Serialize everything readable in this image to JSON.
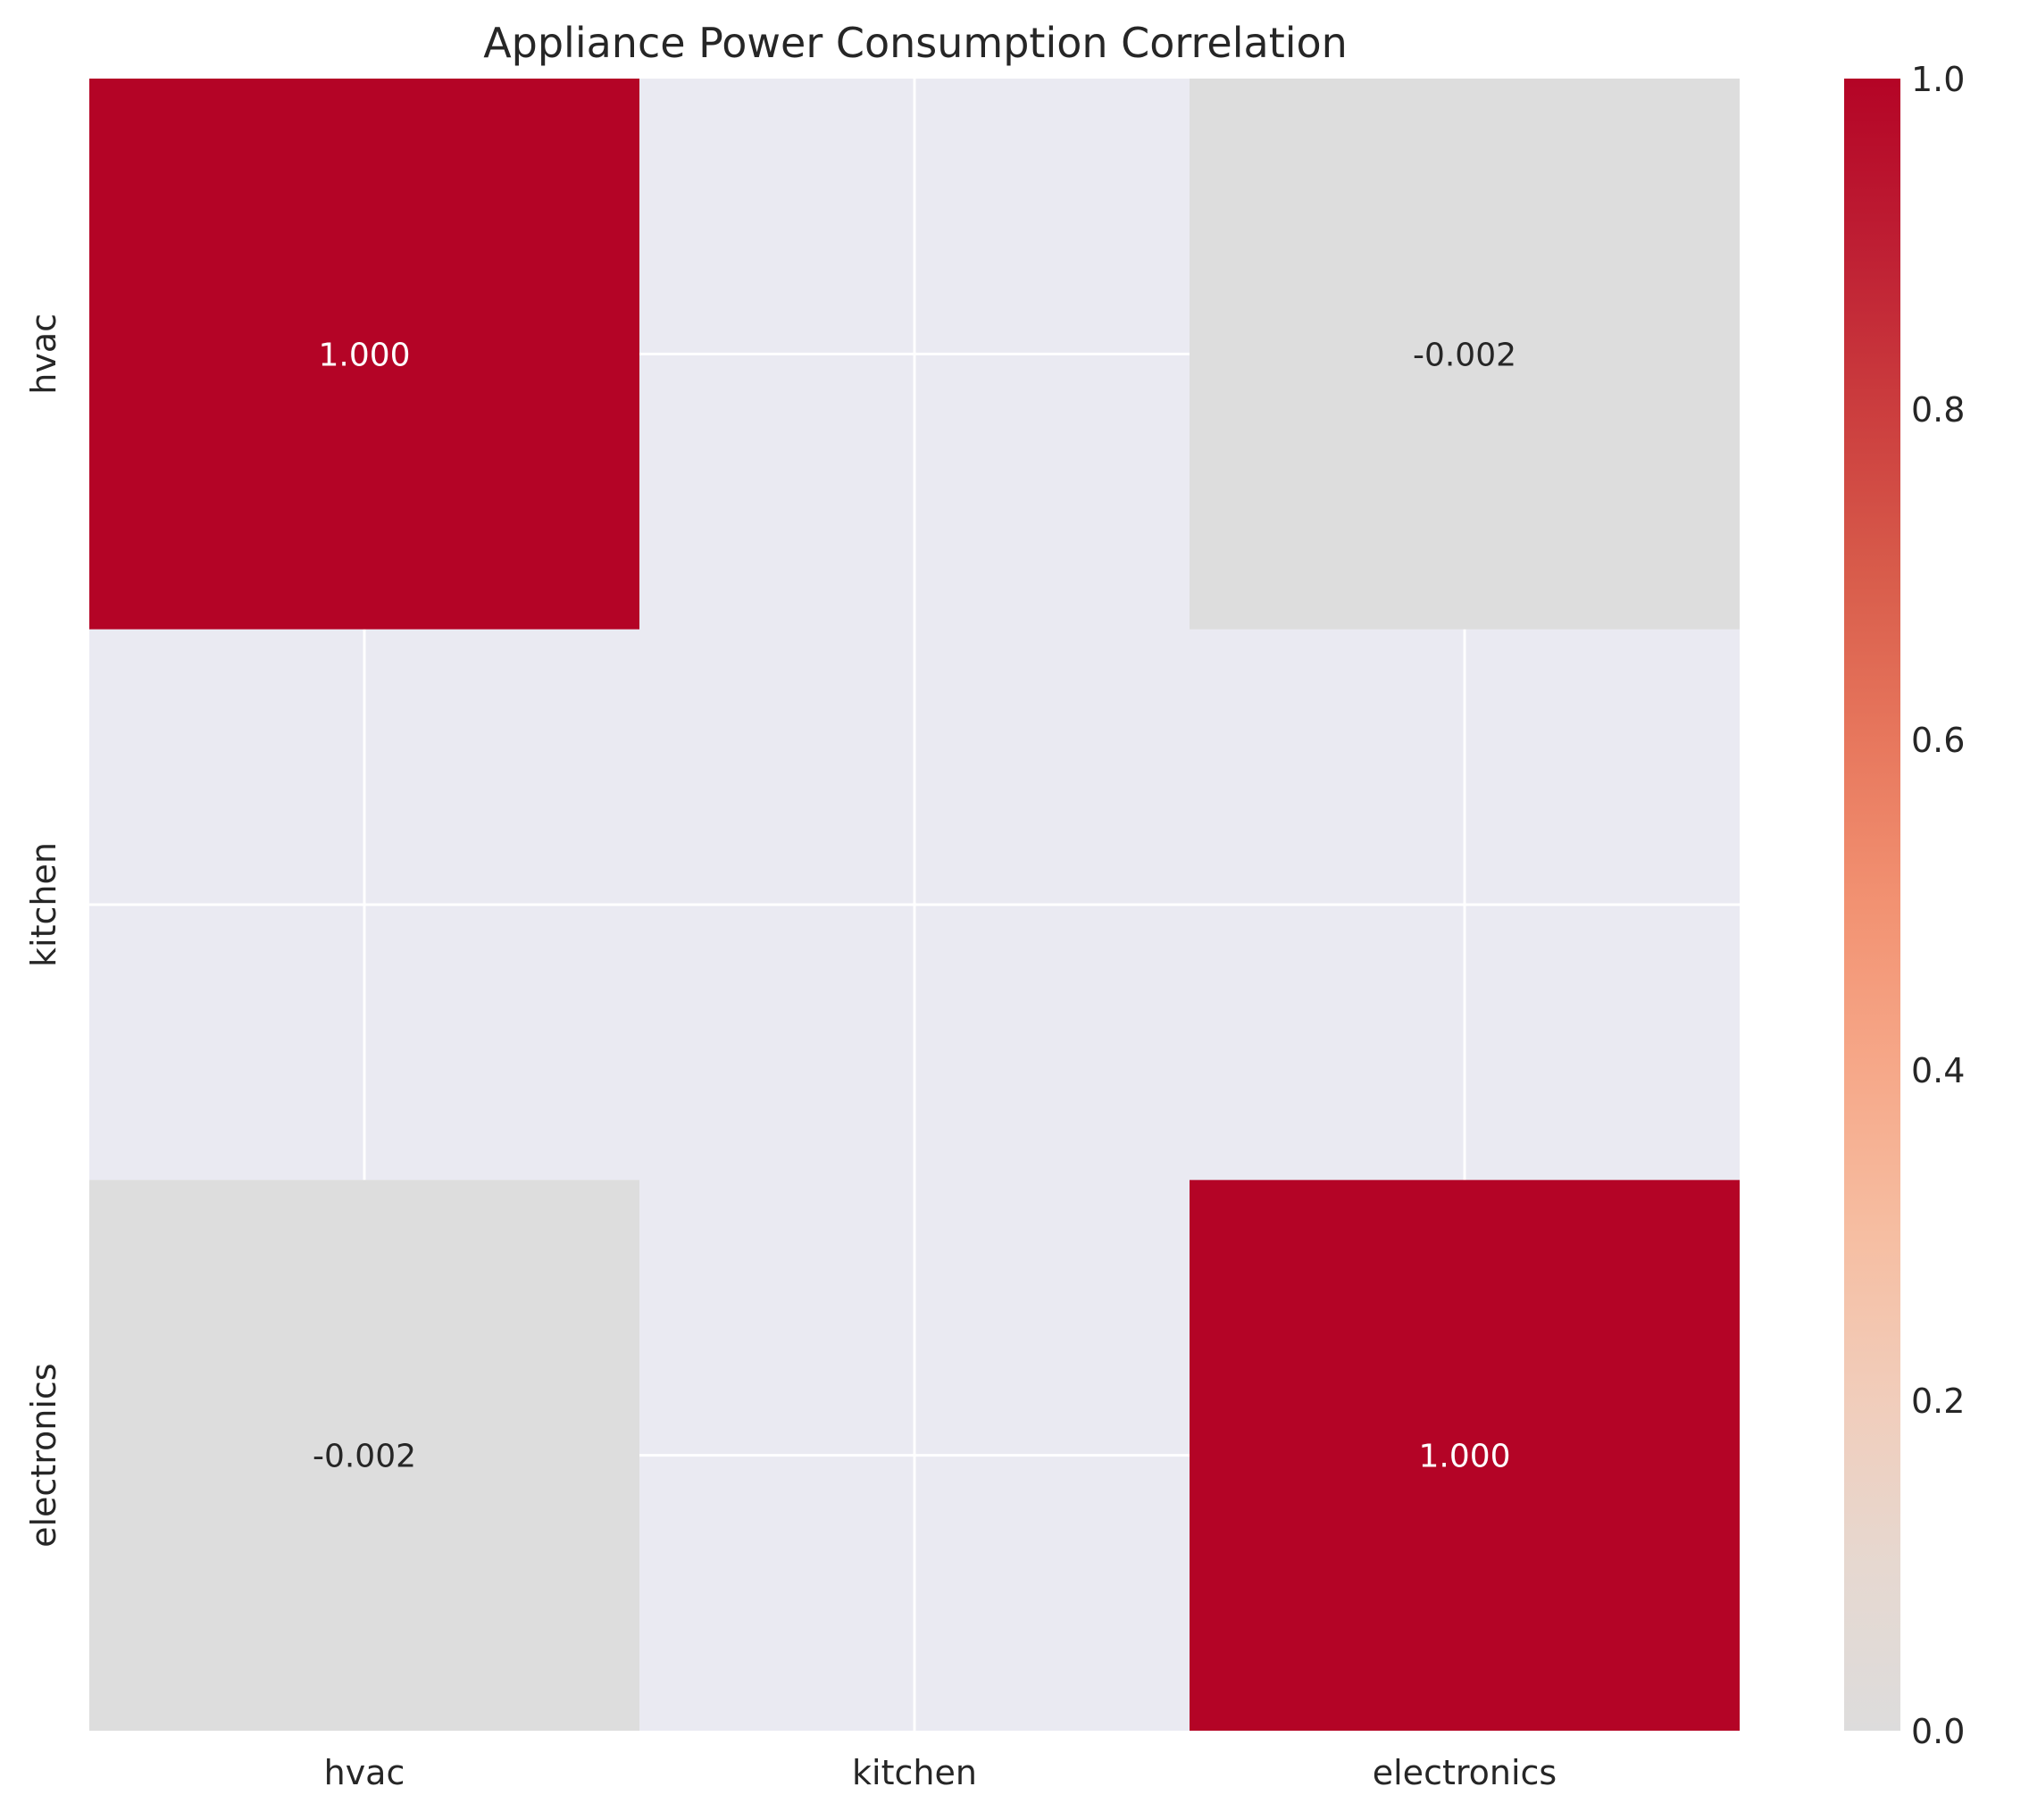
{
  "chart_data": {
    "type": "heatmap",
    "title": "Appliance Power Consumption Correlation",
    "xlabel": "",
    "ylabel": "",
    "x_categories": [
      "hvac",
      "kitchen",
      "electronics"
    ],
    "y_categories": [
      "hvac",
      "kitchen",
      "electronics"
    ],
    "values": [
      [
        1.0,
        null,
        -0.002
      ],
      [
        null,
        null,
        null
      ],
      [
        -0.002,
        null,
        1.0
      ]
    ],
    "cell_labels": [
      [
        "1.000",
        "",
        "-0.002"
      ],
      [
        "",
        "",
        ""
      ],
      [
        "-0.002",
        "",
        "1.000"
      ]
    ],
    "colormap": "coolwarm",
    "vmin": 0.0,
    "vmax": 1.0,
    "colorbar_ticks": [
      "0.0",
      "0.2",
      "0.4",
      "0.6",
      "0.8",
      "1.0"
    ],
    "grid": true,
    "missing_color": "#eaeaf2",
    "grid_color": "#ffffff"
  }
}
